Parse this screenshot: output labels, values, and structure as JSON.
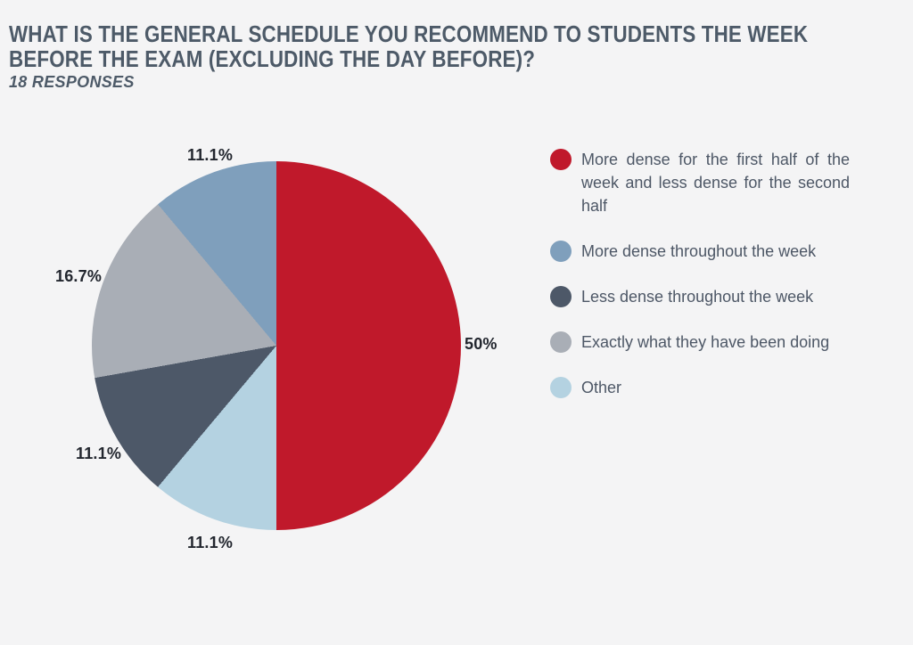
{
  "page": {
    "background": "#f4f4f5"
  },
  "header": {
    "title_line1": "WHAT IS THE GENERAL SCHEDULE YOU RECOMMEND TO STUDENTS THE WEEK",
    "title_line2": "BEFORE THE EXAM (EXCLUDING THE DAY BEFORE)?",
    "subtitle": "18 RESPONSES"
  },
  "chart_data": {
    "type": "pie",
    "title": "WHAT IS THE GENERAL SCHEDULE YOU RECOMMEND TO STUDENTS THE WEEK BEFORE THE EXAM (EXCLUDING THE DAY BEFORE)?",
    "subtitle": "18 RESPONSES",
    "total_responses": 18,
    "legend_position": "right",
    "start_angle_deg": 0,
    "direction": "clockwise",
    "slices": [
      {
        "label": "More dense for the first half of the week and less dense for the second half",
        "pct": 50.0,
        "pct_label": "50%",
        "color": "#c0192b"
      },
      {
        "label": "More dense throughout the week",
        "pct": 11.1,
        "pct_label": "11.1%",
        "color": "#7f9fbc"
      },
      {
        "label": "Less dense throughout the week",
        "pct": 11.1,
        "pct_label": "11.1%",
        "color": "#4d5868"
      },
      {
        "label": "Exactly what they have been doing",
        "pct": 16.7,
        "pct_label": "16.7%",
        "color": "#a9aeb6"
      },
      {
        "label": "Other",
        "pct": 11.1,
        "pct_label": "11.1%",
        "color": "#b4d2e1"
      }
    ],
    "draw_order_clockwise_from_top": [
      0,
      4,
      2,
      3,
      1
    ]
  }
}
